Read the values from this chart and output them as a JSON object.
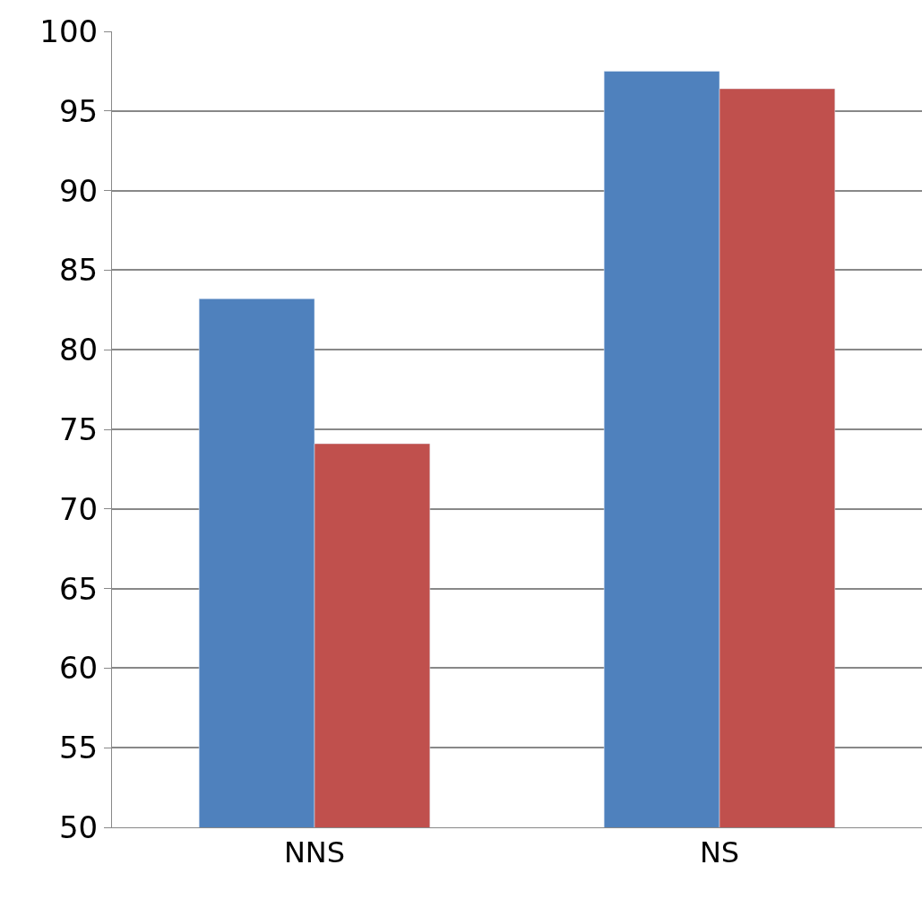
{
  "chart_data": {
    "type": "bar",
    "categories": [
      "NNS",
      "NS"
    ],
    "series": [
      {
        "color": "#4f81bd",
        "values": [
          83.2,
          97.5
        ]
      },
      {
        "color": "#c0504d",
        "values": [
          74.1,
          96.4
        ]
      }
    ],
    "ylim": [
      50,
      100
    ],
    "yticks": [
      50,
      55,
      60,
      65,
      70,
      75,
      80,
      85,
      90,
      95,
      100
    ],
    "grid": "y"
  }
}
